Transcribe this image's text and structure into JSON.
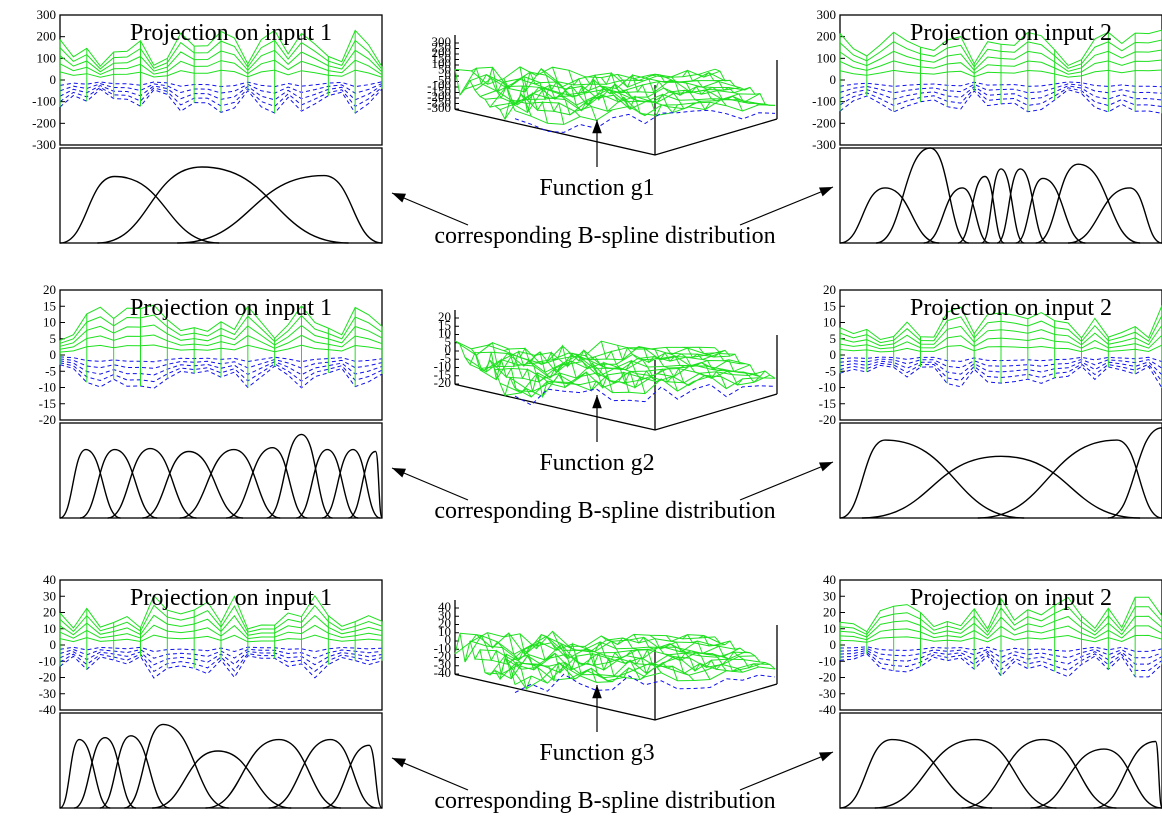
{
  "chart_data": [
    {
      "type": "figure-row",
      "function_label": "Function g1",
      "bspline_label": "corresponding B-spline distribution",
      "left": {
        "title": "Projection on input 1",
        "yticks": [
          "300",
          "200",
          "100",
          "0",
          "-100",
          "-200",
          "-300"
        ],
        "ylim": [
          -300,
          300
        ],
        "bspline_knots": [
          0,
          0.3,
          0.85,
          1.0
        ],
        "bspline_peaks": [
          {
            "x": 0.17,
            "h": 0.7
          },
          {
            "x": 0.44,
            "h": 0.8
          },
          {
            "x": 0.82,
            "h": 0.71
          }
        ]
      },
      "center": {
        "yticks": [
          "300",
          "250",
          "200",
          "150",
          "100",
          "50",
          "0",
          "-50",
          "-100",
          "-150",
          "-200",
          "-250",
          "-300"
        ],
        "zlim": [
          -300,
          300
        ]
      },
      "right": {
        "title": "Projection on input 2",
        "yticks": [
          "300",
          "200",
          "100",
          "0",
          "-100",
          "-200",
          "-300"
        ],
        "ylim": [
          -300,
          300
        ],
        "bspline_peaks": [
          {
            "x": 0.14,
            "h": 0.58
          },
          {
            "x": 0.28,
            "h": 1.0
          },
          {
            "x": 0.38,
            "h": 0.58
          },
          {
            "x": 0.45,
            "h": 0.7
          },
          {
            "x": 0.5,
            "h": 0.78
          },
          {
            "x": 0.56,
            "h": 0.78
          },
          {
            "x": 0.63,
            "h": 0.68
          },
          {
            "x": 0.74,
            "h": 0.83
          },
          {
            "x": 0.9,
            "h": 0.58
          }
        ]
      }
    },
    {
      "type": "figure-row",
      "function_label": "Function g2",
      "bspline_label": "corresponding B-spline distribution",
      "left": {
        "title": "Projection on input 1",
        "yticks": [
          "20",
          "15",
          "10",
          "5",
          "0",
          "-5",
          "-10",
          "-15",
          "-20"
        ],
        "ylim": [
          -20,
          20
        ],
        "bspline_peaks": [
          {
            "x": 0.08,
            "h": 0.72
          },
          {
            "x": 0.17,
            "h": 0.72
          },
          {
            "x": 0.28,
            "h": 0.73
          },
          {
            "x": 0.4,
            "h": 0.7
          },
          {
            "x": 0.54,
            "h": 0.72
          },
          {
            "x": 0.66,
            "h": 0.74
          },
          {
            "x": 0.75,
            "h": 0.88
          },
          {
            "x": 0.83,
            "h": 0.72
          },
          {
            "x": 0.91,
            "h": 0.72
          },
          {
            "x": 0.98,
            "h": 0.7
          }
        ]
      },
      "center": {
        "yticks": [
          "20",
          "15",
          "10",
          "5",
          "0",
          "-5",
          "-10",
          "-15",
          "-20"
        ],
        "zlim": [
          -20,
          20
        ]
      },
      "right": {
        "title": "Projection on input 2",
        "yticks": [
          "20",
          "15",
          "10",
          "5",
          "0",
          "-5",
          "-10",
          "-15",
          "-20"
        ],
        "ylim": [
          -20,
          20
        ],
        "bspline_peaks": [
          {
            "x": 0.14,
            "h": 0.82
          },
          {
            "x": 0.5,
            "h": 0.65
          },
          {
            "x": 0.86,
            "h": 0.82
          },
          {
            "x": 1.0,
            "h": 0.95
          }
        ]
      }
    },
    {
      "type": "figure-row",
      "function_label": "Function g3",
      "bspline_label": "corresponding B-spline distribution",
      "left": {
        "title": "Projection on input 1",
        "yticks": [
          "40",
          "30",
          "20",
          "10",
          "0",
          "-10",
          "-20",
          "-30",
          "-40"
        ],
        "ylim": [
          -40,
          40
        ],
        "bspline_peaks": [
          {
            "x": 0.06,
            "h": 0.72
          },
          {
            "x": 0.14,
            "h": 0.74
          },
          {
            "x": 0.22,
            "h": 0.76
          },
          {
            "x": 0.32,
            "h": 0.88
          },
          {
            "x": 0.49,
            "h": 0.6
          },
          {
            "x": 0.68,
            "h": 0.72
          },
          {
            "x": 0.84,
            "h": 0.72
          },
          {
            "x": 0.96,
            "h": 0.66
          }
        ]
      },
      "center": {
        "yticks": [
          "40",
          "30",
          "20",
          "10",
          "0",
          "-10",
          "-20",
          "-30",
          "-40"
        ],
        "zlim": [
          -40,
          40
        ]
      },
      "right": {
        "title": "Projection on input 2",
        "yticks": [
          "40",
          "30",
          "20",
          "10",
          "0",
          "-10",
          "-20",
          "-30",
          "-40"
        ],
        "ylim": [
          -40,
          40
        ],
        "bspline_peaks": [
          {
            "x": 0.16,
            "h": 0.72
          },
          {
            "x": 0.42,
            "h": 0.72
          },
          {
            "x": 0.63,
            "h": 0.72
          },
          {
            "x": 0.82,
            "h": 0.62
          },
          {
            "x": 0.98,
            "h": 0.7
          }
        ]
      }
    }
  ]
}
